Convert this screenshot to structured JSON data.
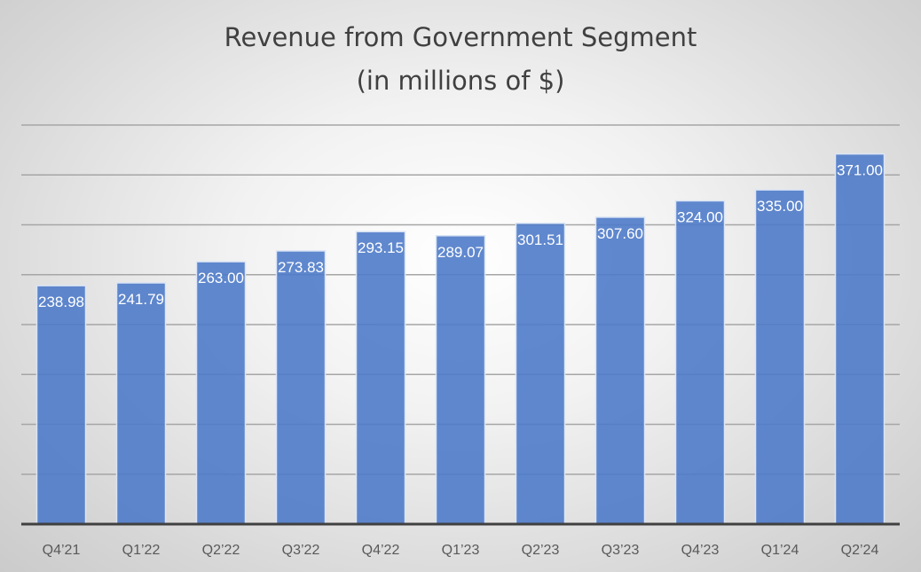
{
  "chart_data": {
    "type": "bar",
    "title": [
      "Revenue from Government Segment",
      "(in millions of $)"
    ],
    "xlabel": "",
    "ylabel": "",
    "categories": [
      "Q4’21",
      "Q1’22",
      "Q2’22",
      "Q3’22",
      "Q4’22",
      "Q1’23",
      "Q2’23",
      "Q3’23",
      "Q4’23",
      "Q1’24",
      "Q2’24"
    ],
    "values": [
      238.98,
      241.79,
      263.0,
      273.83,
      293.15,
      289.07,
      301.51,
      307.6,
      324.0,
      335.0,
      371.0
    ],
    "data_labels": [
      "238.98",
      "241.79",
      "263.00",
      "273.83",
      "293.15",
      "289.07",
      "301.51",
      "307.60",
      "324.00",
      "335.00",
      "371.00"
    ],
    "ylim": [
      0,
      400
    ],
    "ytick_step": 50,
    "grid": true,
    "legend": "none",
    "colors": {
      "bar": "#4f7bc9",
      "bar_border": "#dbe5f5",
      "grid": "#a6a6a6",
      "axis": "#404040",
      "label": "#ffffff",
      "tick": "#595959"
    }
  }
}
